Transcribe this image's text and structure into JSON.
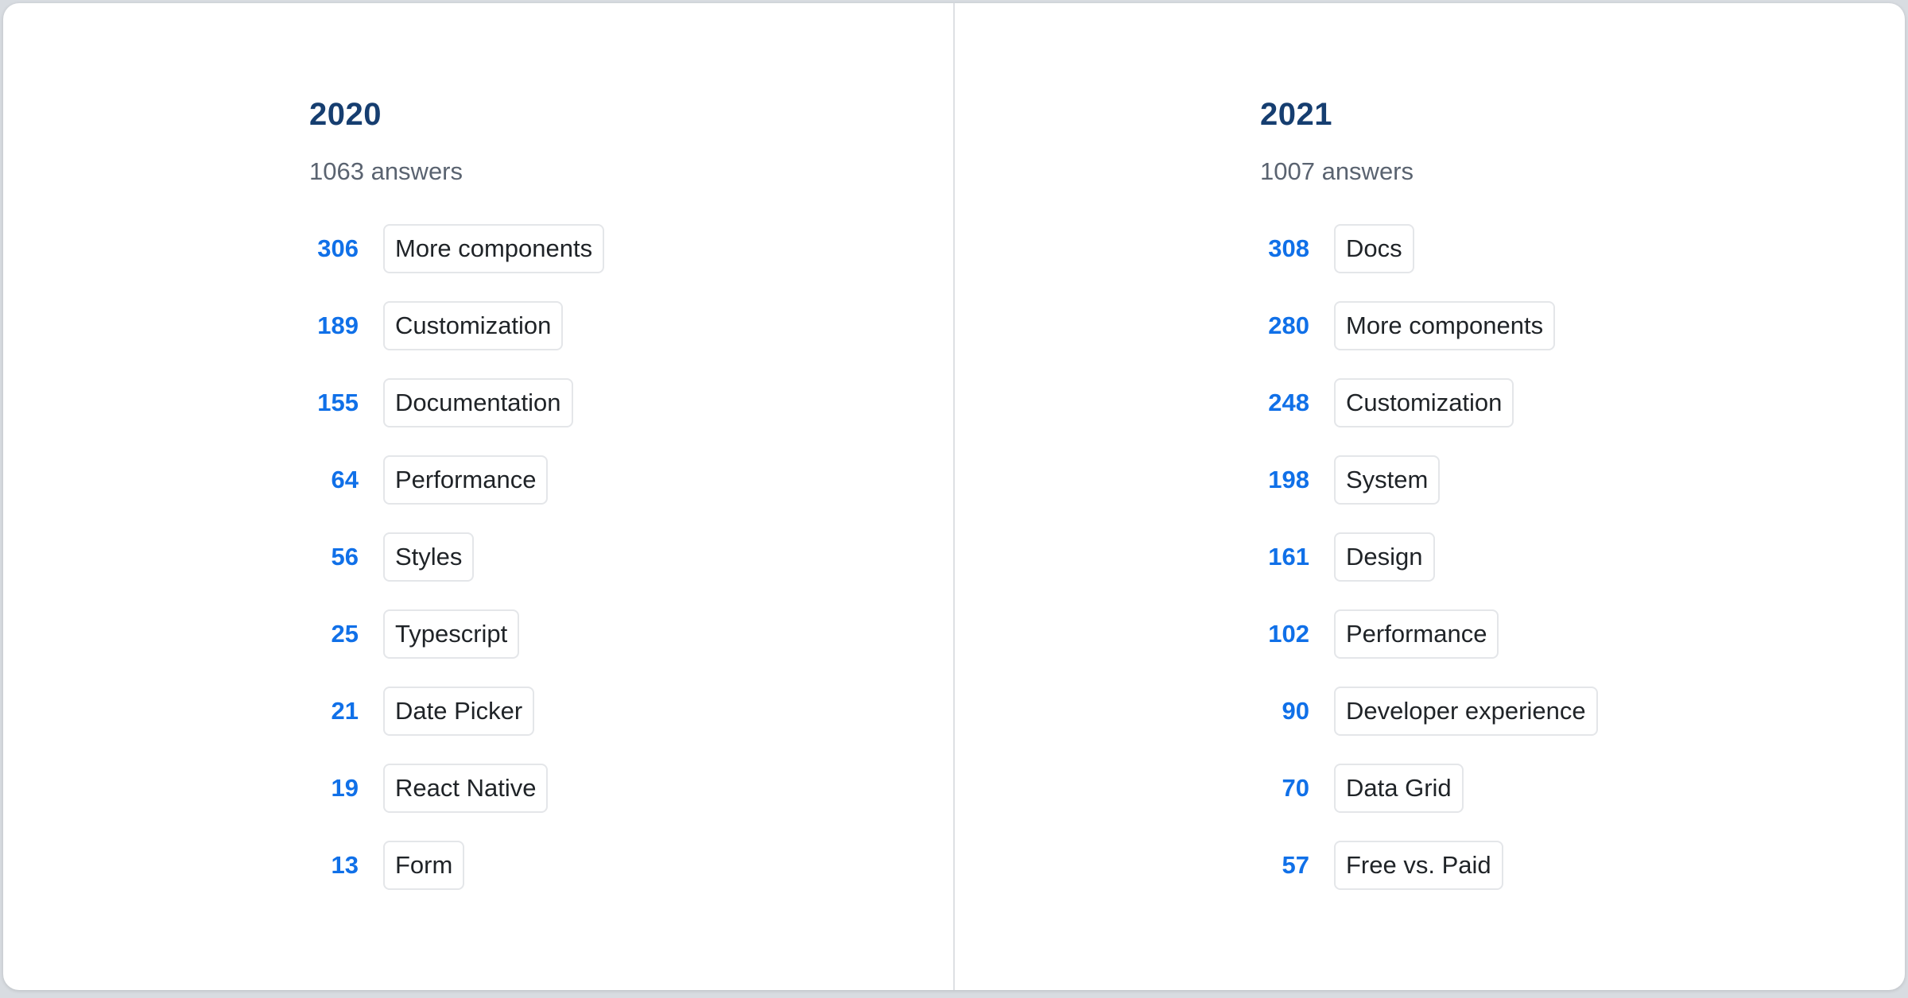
{
  "page": {
    "background_color": "#d8dce1",
    "card_background": "#ffffff",
    "divider_color": "#dde0e4"
  },
  "colors": {
    "year_heading": "#163e70",
    "count_number": "#1070e8",
    "subtitle_text": "#5a6370",
    "chip_text": "#1f2327",
    "chip_border": "#e4e6e9"
  },
  "columns": [
    {
      "title": "2020",
      "subtitle": "1063 answers",
      "rows": [
        {
          "count": "306",
          "label": "More components"
        },
        {
          "count": "189",
          "label": "Customization"
        },
        {
          "count": "155",
          "label": "Documentation"
        },
        {
          "count": "64",
          "label": "Performance"
        },
        {
          "count": "56",
          "label": "Styles"
        },
        {
          "count": "25",
          "label": "Typescript"
        },
        {
          "count": "21",
          "label": "Date Picker"
        },
        {
          "count": "19",
          "label": "React Native"
        },
        {
          "count": "13",
          "label": "Form"
        }
      ]
    },
    {
      "title": "2021",
      "subtitle": "1007 answers",
      "rows": [
        {
          "count": "308",
          "label": "Docs"
        },
        {
          "count": "280",
          "label": "More components"
        },
        {
          "count": "248",
          "label": "Customization"
        },
        {
          "count": "198",
          "label": "System"
        },
        {
          "count": "161",
          "label": "Design"
        },
        {
          "count": "102",
          "label": "Performance"
        },
        {
          "count": "90",
          "label": "Developer experience"
        },
        {
          "count": "70",
          "label": "Data Grid"
        },
        {
          "count": "57",
          "label": "Free vs. Paid"
        }
      ]
    }
  ],
  "chart_data": [
    {
      "type": "table",
      "title": "2020",
      "subtitle": "1063 answers",
      "categories": [
        "More components",
        "Customization",
        "Documentation",
        "Performance",
        "Styles",
        "Typescript",
        "Date Picker",
        "React Native",
        "Form"
      ],
      "values": [
        306,
        189,
        155,
        64,
        56,
        25,
        21,
        19,
        13
      ]
    },
    {
      "type": "table",
      "title": "2021",
      "subtitle": "1007 answers",
      "categories": [
        "Docs",
        "More components",
        "Customization",
        "System",
        "Design",
        "Performance",
        "Developer experience",
        "Data Grid",
        "Free vs. Paid"
      ],
      "values": [
        308,
        280,
        248,
        198,
        161,
        102,
        90,
        70,
        57
      ]
    }
  ]
}
